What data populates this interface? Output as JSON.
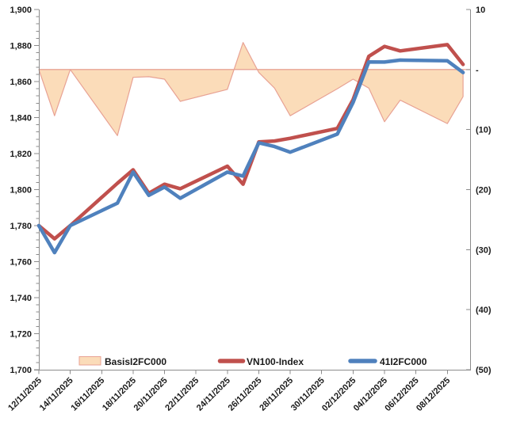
{
  "chart_data": {
    "type": "combo-area-line",
    "title": "",
    "dates": [
      "12/11/2025",
      "13/11/2025",
      "14/11/2025",
      "17/11/2025",
      "18/11/2025",
      "19/11/2025",
      "20/11/2025",
      "21/11/2025",
      "24/11/2025",
      "25/11/2025",
      "26/11/2025",
      "27/11/2025",
      "28/11/2025",
      "01/12/2025",
      "02/12/2025",
      "03/12/2025",
      "04/12/2025",
      "05/12/2025",
      "08/12/2025",
      "09/12/2025"
    ],
    "day_offsets": [
      0,
      1,
      2,
      5,
      6,
      7,
      8,
      9,
      12,
      13,
      14,
      15,
      16,
      19,
      20,
      21,
      22,
      23,
      26,
      27
    ],
    "series": [
      {
        "name": "BasisI2FC000",
        "type": "area",
        "axis": "right",
        "values": [
          0.0,
          -7.7,
          0.0,
          -11.0,
          -1.3,
          -1.2,
          -1.6,
          -5.3,
          -3.3,
          4.5,
          -0.5,
          -3.1,
          -7.7,
          -3.2,
          -1.6,
          -3.1,
          -8.7,
          -5.1,
          -9.0,
          -4.5
        ]
      },
      {
        "name": "VN100-Index",
        "type": "line",
        "axis": "left",
        "values": [
          1780.0,
          1772.7,
          1780.0,
          1803.5,
          1811.0,
          1798.0,
          1803.0,
          1800.5,
          1813.0,
          1803.0,
          1826.5,
          1827.0,
          1828.5,
          1834.0,
          1850.0,
          1874.0,
          1879.5,
          1877.0,
          1880.5,
          1869.5
        ]
      },
      {
        "name": "41I2FC000",
        "type": "line",
        "axis": "left",
        "values": [
          1780.0,
          1765.0,
          1780.0,
          1792.5,
          1809.7,
          1796.8,
          1801.4,
          1795.2,
          1809.7,
          1807.5,
          1826.0,
          1823.9,
          1820.8,
          1830.8,
          1848.4,
          1870.9,
          1870.8,
          1871.9,
          1871.5,
          1865.0
        ]
      }
    ],
    "left_axis": {
      "min": 1700,
      "max": 1900,
      "major_step": 20,
      "minor_step": 4,
      "tick_labels": [
        "1,900",
        "1,880",
        "1,860",
        "1,840",
        "1,820",
        "1,800",
        "1,780",
        "1,760",
        "1,740",
        "1,720",
        "1,700"
      ]
    },
    "right_axis": {
      "min": -50,
      "max": 10,
      "major_step": 10,
      "tick_values": [
        10,
        0,
        -10,
        -20,
        -30,
        -40,
        -50
      ],
      "tick_labels": [
        "10",
        "-",
        "(10)",
        "(20)",
        "(30)",
        "(40)",
        "(50)"
      ]
    },
    "x_axis": {
      "tick_labels": [
        "12/11/2025",
        "14/11/2025",
        "16/11/2025",
        "18/11/2025",
        "20/11/2025",
        "22/11/2025",
        "24/11/2025",
        "26/11/2025",
        "28/11/2025",
        "30/11/2025",
        "02/12/2025",
        "04/12/2025",
        "06/12/2025",
        "08/12/2025"
      ],
      "tick_days": [
        0,
        2,
        4,
        6,
        8,
        10,
        12,
        14,
        16,
        18,
        20,
        22,
        24,
        26
      ]
    },
    "legend": {
      "items": [
        {
          "label": "BasisI2FC000",
          "swatch": "area"
        },
        {
          "label": "VN100-Index",
          "swatch": "line"
        },
        {
          "label": "41I2FC000",
          "swatch": "line"
        }
      ]
    },
    "colors": {
      "area_fill": "#FBDCB9",
      "area_stroke": "#E8A294",
      "vn100_line": "#C0504D",
      "futures_line": "#4F81BD",
      "axis": "#8C8C8C",
      "text": "#1A1A1A"
    }
  }
}
